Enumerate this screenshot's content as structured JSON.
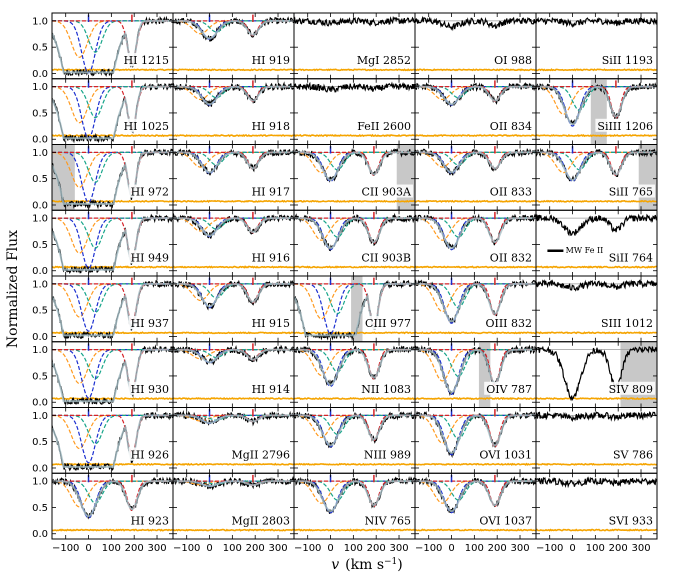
{
  "chart_data": {
    "type": "line",
    "ylabel": "Normalized Flux",
    "xlabel": "v (km s^-1)",
    "xlabel_v": "v",
    "xlabel_units": "(km s",
    "xlabel_exp": "−1",
    "xlabel_close": ")",
    "xlim": [
      -160,
      370
    ],
    "ylim": [
      -0.1,
      1.15
    ],
    "x_ticks": [
      -100,
      0,
      100,
      200,
      300
    ],
    "x_tick_labels": [
      "−100",
      "0",
      "100",
      "200",
      "300"
    ],
    "y_ticks": [
      0.0,
      0.5,
      1.0
    ],
    "y_tick_labels": [
      "0.0",
      "0.5",
      "1.0"
    ],
    "grid": false,
    "component_velocities": [
      0,
      190
    ],
    "colors": {
      "data": "#000000",
      "error": "#f5a400",
      "model": "#a8c0c8",
      "continuum": "#9a9a9a",
      "blue_comp": "#1b2fd0",
      "red_comp": "#d62228",
      "orange_comp": "#ff9a1f",
      "green_comp": "#17a58a",
      "purple_comp": "#8b2a8b",
      "masked": "#c8c8c8"
    },
    "mw_annotation": "MW Fe II",
    "panels": [
      {
        "label": "HI 1215",
        "col": 0,
        "row": 0,
        "depth": 0.99,
        "sat": true,
        "comps": true
      },
      {
        "label": "HI 919",
        "col": 1,
        "row": 0,
        "depth": 0.35,
        "comps": true
      },
      {
        "label": "MgI 2852",
        "col": 2,
        "row": 0,
        "depth": 0.04
      },
      {
        "label": "OI 988",
        "col": 3,
        "row": 0,
        "depth": 0.12
      },
      {
        "label": "SiII 1193",
        "col": 4,
        "row": 0,
        "depth": 0.05
      },
      {
        "label": "HI 1025",
        "col": 0,
        "row": 1,
        "depth": 0.98,
        "sat": true,
        "comps": true
      },
      {
        "label": "HI 918",
        "col": 1,
        "row": 1,
        "depth": 0.35,
        "comps": true
      },
      {
        "label": "FeII 2600",
        "col": 2,
        "row": 1,
        "depth": 0.06
      },
      {
        "label": "OII 834",
        "col": 3,
        "row": 1,
        "depth": 0.35,
        "comps": true
      },
      {
        "label": "SiIII 1206",
        "col": 4,
        "row": 1,
        "depth": 0.75,
        "comps": true,
        "mask": [
          80,
          150
        ]
      },
      {
        "label": "HI 972",
        "col": 0,
        "row": 2,
        "depth": 0.95,
        "sat": true,
        "comps": true,
        "mask": [
          -160,
          -60
        ]
      },
      {
        "label": "HI 917",
        "col": 1,
        "row": 2,
        "depth": 0.4,
        "comps": true
      },
      {
        "label": "CII 903A",
        "col": 2,
        "row": 2,
        "depth": 0.55,
        "comps": true,
        "mask": [
          290,
          370
        ]
      },
      {
        "label": "OII 833",
        "col": 3,
        "row": 2,
        "depth": 0.4,
        "comps": true
      },
      {
        "label": "SiII 765",
        "col": 4,
        "row": 2,
        "depth": 0.55,
        "comps": true,
        "mask": [
          290,
          370
        ]
      },
      {
        "label": "HI 949",
        "col": 0,
        "row": 3,
        "depth": 0.95,
        "sat": true,
        "comps": true
      },
      {
        "label": "HI 916",
        "col": 1,
        "row": 3,
        "depth": 0.35,
        "comps": true
      },
      {
        "label": "CII 903B",
        "col": 2,
        "row": 3,
        "depth": 0.6,
        "comps": true
      },
      {
        "label": "OII 832",
        "col": 3,
        "row": 3,
        "depth": 0.6,
        "comps": true
      },
      {
        "label": "SiII 764",
        "col": 4,
        "row": 3,
        "depth": 0.3,
        "mw": true
      },
      {
        "label": "HI 937",
        "col": 0,
        "row": 4,
        "depth": 0.9,
        "sat": true,
        "comps": true
      },
      {
        "label": "HI 915",
        "col": 1,
        "row": 4,
        "depth": 0.45,
        "comps": true
      },
      {
        "label": "CIII 977",
        "col": 2,
        "row": 4,
        "depth": 0.95,
        "sat": true,
        "comps": true,
        "mask": [
          90,
          140
        ]
      },
      {
        "label": "OIII 832",
        "col": 3,
        "row": 4,
        "depth": 0.75,
        "comps": true
      },
      {
        "label": "SIII 1012",
        "col": 4,
        "row": 4,
        "depth": 0.08
      },
      {
        "label": "HI 930",
        "col": 0,
        "row": 5,
        "depth": 0.92,
        "sat": true,
        "comps": true
      },
      {
        "label": "HI 914",
        "col": 1,
        "row": 5,
        "depth": 0.25,
        "comps": true
      },
      {
        "label": "NII 1083",
        "col": 2,
        "row": 5,
        "depth": 0.7,
        "comps": true
      },
      {
        "label": "OIV 787",
        "col": 3,
        "row": 5,
        "depth": 0.85,
        "comps": true,
        "mask": [
          120,
          170
        ]
      },
      {
        "label": "SIV 809",
        "col": 4,
        "row": 5,
        "depth": 0.95,
        "mask": [
          210,
          370
        ]
      },
      {
        "label": "HI 926",
        "col": 0,
        "row": 6,
        "depth": 0.9,
        "sat": true,
        "comps": true
      },
      {
        "label": "MgII 2796",
        "col": 1,
        "row": 6,
        "depth": 0.15,
        "comps": true
      },
      {
        "label": "NIII 989",
        "col": 2,
        "row": 6,
        "depth": 0.6,
        "comps": true
      },
      {
        "label": "OVI 1031",
        "col": 3,
        "row": 6,
        "depth": 0.75,
        "comps": true
      },
      {
        "label": "SV 786",
        "col": 4,
        "row": 6,
        "depth": 0.04
      },
      {
        "label": "HI 923",
        "col": 0,
        "row": 7,
        "depth": 0.7,
        "comps": true
      },
      {
        "label": "MgII 2803",
        "col": 1,
        "row": 7,
        "depth": 0.1,
        "comps": true
      },
      {
        "label": "NIV 765",
        "col": 2,
        "row": 7,
        "depth": 0.6,
        "comps": true
      },
      {
        "label": "OVI 1037",
        "col": 3,
        "row": 7,
        "depth": 0.6,
        "comps": true
      },
      {
        "label": "SVI 933",
        "col": 4,
        "row": 7,
        "depth": 0.05
      }
    ]
  }
}
